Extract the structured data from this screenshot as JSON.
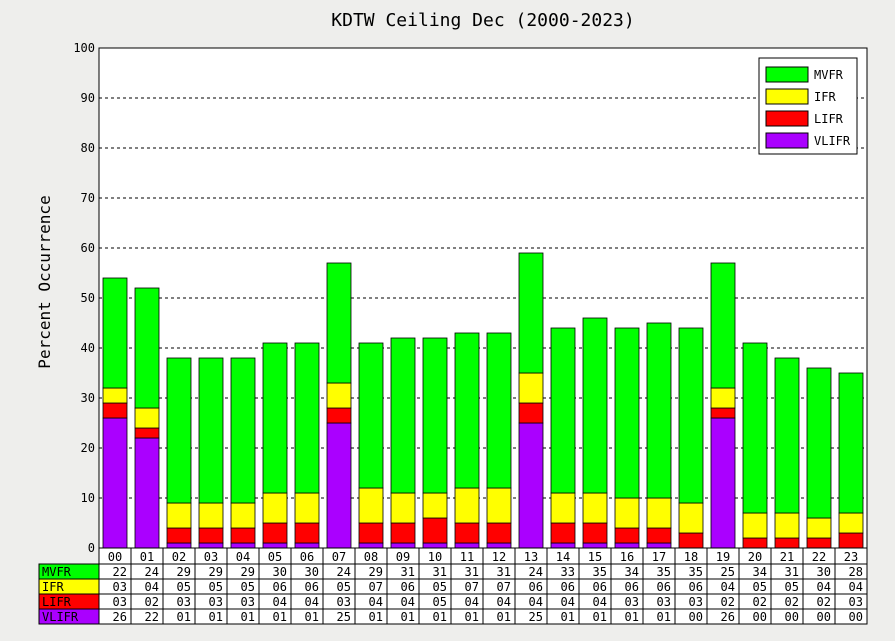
{
  "chart_data": {
    "type": "bar",
    "stacked": true,
    "title": "KDTW Ceiling Dec (2000-2023)",
    "ylabel": "Percent Occurrence",
    "xlabel": "",
    "ylim": [
      0,
      100
    ],
    "yticks": [
      0,
      10,
      20,
      30,
      40,
      50,
      60,
      70,
      80,
      90,
      100
    ],
    "grid": "dashed horizontal",
    "legend_position": "top-right",
    "categories": [
      "00",
      "01",
      "02",
      "03",
      "04",
      "05",
      "06",
      "07",
      "08",
      "09",
      "10",
      "11",
      "12",
      "13",
      "14",
      "15",
      "16",
      "17",
      "18",
      "19",
      "20",
      "21",
      "22",
      "23"
    ],
    "series": [
      {
        "name": "VLIFR",
        "color": "#aa00ff",
        "values": [
          26,
          22,
          1,
          1,
          1,
          1,
          1,
          25,
          1,
          1,
          1,
          1,
          1,
          25,
          1,
          1,
          1,
          1,
          0,
          26,
          0,
          0,
          0,
          0
        ],
        "table": [
          "26",
          "22",
          "01",
          "01",
          "01",
          "01",
          "01",
          "25",
          "01",
          "01",
          "01",
          "01",
          "01",
          "25",
          "01",
          "01",
          "01",
          "01",
          "00",
          "26",
          "00",
          "00",
          "00",
          "00"
        ]
      },
      {
        "name": "LIFR",
        "color": "#ff0000",
        "values": [
          3,
          2,
          3,
          3,
          3,
          4,
          4,
          3,
          4,
          4,
          5,
          4,
          4,
          4,
          4,
          4,
          3,
          3,
          3,
          2,
          2,
          2,
          2,
          3
        ],
        "table": [
          "03",
          "02",
          "03",
          "03",
          "03",
          "04",
          "04",
          "03",
          "04",
          "04",
          "05",
          "04",
          "04",
          "04",
          "04",
          "04",
          "03",
          "03",
          "03",
          "02",
          "02",
          "02",
          "02",
          "03"
        ]
      },
      {
        "name": "IFR",
        "color": "#ffff00",
        "values": [
          3,
          4,
          5,
          5,
          5,
          6,
          6,
          5,
          7,
          6,
          5,
          7,
          7,
          6,
          6,
          6,
          6,
          6,
          6,
          4,
          5,
          5,
          4,
          4
        ],
        "table": [
          "03",
          "04",
          "05",
          "05",
          "05",
          "06",
          "06",
          "05",
          "07",
          "06",
          "05",
          "07",
          "07",
          "06",
          "06",
          "06",
          "06",
          "06",
          "06",
          "04",
          "05",
          "05",
          "04",
          "04"
        ]
      },
      {
        "name": "MVFR",
        "color": "#00ff00",
        "values": [
          22,
          24,
          29,
          29,
          29,
          30,
          30,
          24,
          29,
          31,
          31,
          31,
          31,
          24,
          33,
          35,
          34,
          35,
          35,
          25,
          34,
          31,
          30,
          28
        ],
        "table": [
          "22",
          "24",
          "29",
          "29",
          "29",
          "30",
          "30",
          "24",
          "29",
          "31",
          "31",
          "31",
          "31",
          "24",
          "33",
          "35",
          "34",
          "35",
          "35",
          "25",
          "34",
          "31",
          "30",
          "28"
        ]
      }
    ],
    "legend_order": [
      "MVFR",
      "IFR",
      "LIFR",
      "VLIFR"
    ],
    "table_order": [
      "MVFR",
      "IFR",
      "LIFR",
      "VLIFR"
    ]
  }
}
